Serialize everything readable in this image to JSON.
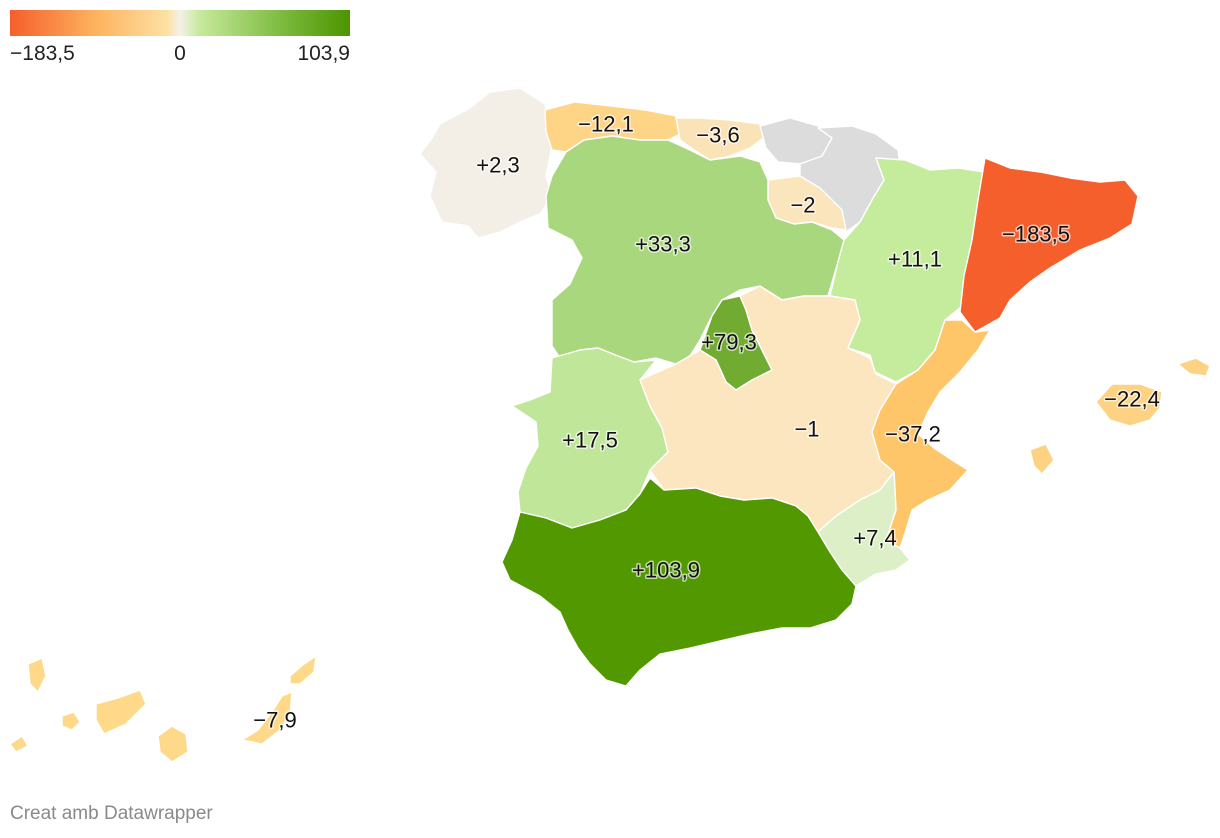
{
  "legend": {
    "min_label": "−183,5",
    "mid_label": "0",
    "max_label": "103,9",
    "min_value": -183.5,
    "mid_value": 0,
    "max_value": 103.9,
    "color_stops": [
      "#f55f2b",
      "#fdb25e",
      "#fde0a1",
      "#f4f1e8",
      "#c5e99a",
      "#7cbb3f",
      "#4d9400"
    ]
  },
  "regions": [
    {
      "id": "galicia",
      "name": "Galicia",
      "value": 2.3,
      "label": "+2,3",
      "color": "#f3efe6"
    },
    {
      "id": "asturias",
      "name": "Asturias",
      "value": -12.1,
      "label": "−12,1",
      "color": "#fed486"
    },
    {
      "id": "cantabria",
      "name": "Cantabria",
      "value": -3.6,
      "label": "−3,6",
      "color": "#fbe3b8"
    },
    {
      "id": "pais-vasco",
      "name": "País Vasco",
      "value": null,
      "label": "",
      "color": "#dcdcdc"
    },
    {
      "id": "navarra",
      "name": "Navarra",
      "value": null,
      "label": "",
      "color": "#dcdcdc"
    },
    {
      "id": "la-rioja",
      "name": "La Rioja",
      "value": -2,
      "label": "−2",
      "color": "#fbe5bd"
    },
    {
      "id": "castilla-leon",
      "name": "Castilla y León",
      "value": 33.3,
      "label": "+33,3",
      "color": "#a9d77e"
    },
    {
      "id": "aragon",
      "name": "Aragón",
      "value": 11.1,
      "label": "+11,1",
      "color": "#c5eb9c"
    },
    {
      "id": "catalunya",
      "name": "Catalunya",
      "value": -183.5,
      "label": "−183,5",
      "color": "#f55f2b"
    },
    {
      "id": "madrid",
      "name": "Madrid",
      "value": 79.3,
      "label": "+79,3",
      "color": "#72ab32"
    },
    {
      "id": "extremadura",
      "name": "Extremadura",
      "value": 17.5,
      "label": "+17,5",
      "color": "#c0e69a"
    },
    {
      "id": "castilla-la-mancha",
      "name": "Castilla-La Mancha",
      "value": -1,
      "label": "−1",
      "color": "#fbe6bf"
    },
    {
      "id": "valencia",
      "name": "Comunitat Valenciana",
      "value": -37.2,
      "label": "−37,2",
      "color": "#fec569"
    },
    {
      "id": "illes-balears",
      "name": "Illes Balears",
      "value": -22.4,
      "label": "−22,4",
      "color": "#fed283"
    },
    {
      "id": "murcia",
      "name": "Región de Murcia",
      "value": 7.4,
      "label": "+7,4",
      "color": "#dcefc6"
    },
    {
      "id": "andalucia",
      "name": "Andalucía",
      "value": 103.9,
      "label": "+103,9",
      "color": "#529800"
    },
    {
      "id": "canarias",
      "name": "Canarias",
      "value": -7.9,
      "label": "−7,9",
      "color": "#fed98a"
    }
  ],
  "credit": "Creat amb Datawrapper"
}
